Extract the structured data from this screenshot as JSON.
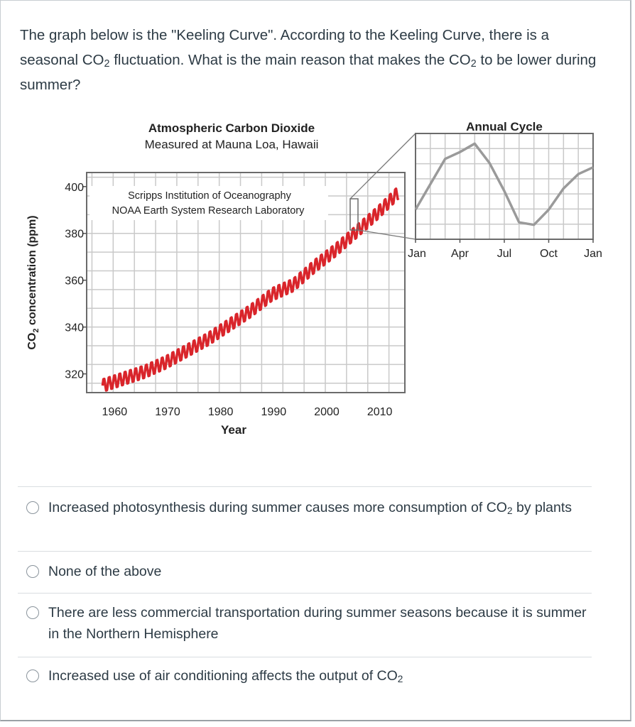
{
  "question": {
    "text_before": "The graph below is the \"Keeling Curve\". According to the Keeling Curve, there is a seasonal CO",
    "sub1": "2",
    "text_middle": " fluctuation. What is the main reason that makes the CO",
    "sub2": "2",
    "text_after": " to be lower during summer?"
  },
  "figure": {
    "main_title_line1": "Atmospheric Carbon Dioxide",
    "main_title_line2": "Measured at Mauna Loa, Hawaii",
    "source_line1": "Scripps Institution of Oceanography",
    "source_line2": "NOAA Earth System Research Laboratory",
    "y_axis_label_prefix": "CO",
    "y_axis_label_sub": "2",
    "y_axis_label_suffix": " concentration (ppm)",
    "x_axis_label": "Year",
    "inset_title": "Annual Cycle",
    "line_color": "#d9252b",
    "inset_line_color": "#9a9a9a"
  },
  "chart_data": [
    {
      "type": "line",
      "title": "Atmospheric Carbon Dioxide Measured at Mauna Loa, Hawaii",
      "xlabel": "Year",
      "ylabel": "CO2 concentration (ppm)",
      "x_ticks": [
        "1960",
        "1970",
        "1980",
        "1990",
        "2000",
        "2010"
      ],
      "y_ticks": [
        "320",
        "340",
        "360",
        "380",
        "400"
      ],
      "xlim": [
        1955,
        2015
      ],
      "ylim": [
        312,
        406
      ],
      "grid": true,
      "series": [
        {
          "x": [
            1958,
            1962,
            1966,
            1970,
            1974,
            1978,
            1982,
            1986,
            1990,
            1994,
            1998,
            2002,
            2006,
            2010,
            2014
          ],
          "values": [
            315,
            318,
            321,
            325,
            330,
            335,
            341,
            347,
            354,
            358,
            366,
            373,
            381,
            389,
            398
          ],
          "seasonal_amplitude": 3
        }
      ]
    },
    {
      "type": "line",
      "title": "Annual Cycle",
      "x_ticks": [
        "Jan",
        "Apr",
        "Jul",
        "Oct",
        "Jan"
      ],
      "x": [
        0,
        1,
        2,
        3,
        4,
        5,
        6,
        7,
        8,
        9,
        10,
        11,
        12
      ],
      "values": [
        0.2,
        0.5,
        0.8,
        0.88,
        0.98,
        0.75,
        0.42,
        0.05,
        0.02,
        0.2,
        0.45,
        0.62,
        0.7
      ],
      "grid": true
    }
  ],
  "answers": [
    {
      "text_before": "Increased photosynthesis during summer causes more consumption of CO",
      "sub": "2",
      "text_after": " by plants"
    },
    {
      "text_before": "None of the above",
      "sub": "",
      "text_after": ""
    },
    {
      "text_before": "There are less commercial transportation during summer seasons because it is summer in the Northern Hemisphere",
      "sub": "",
      "text_after": ""
    },
    {
      "text_before": "Increased use of air conditioning affects the output of CO",
      "sub": "2",
      "text_after": ""
    }
  ]
}
